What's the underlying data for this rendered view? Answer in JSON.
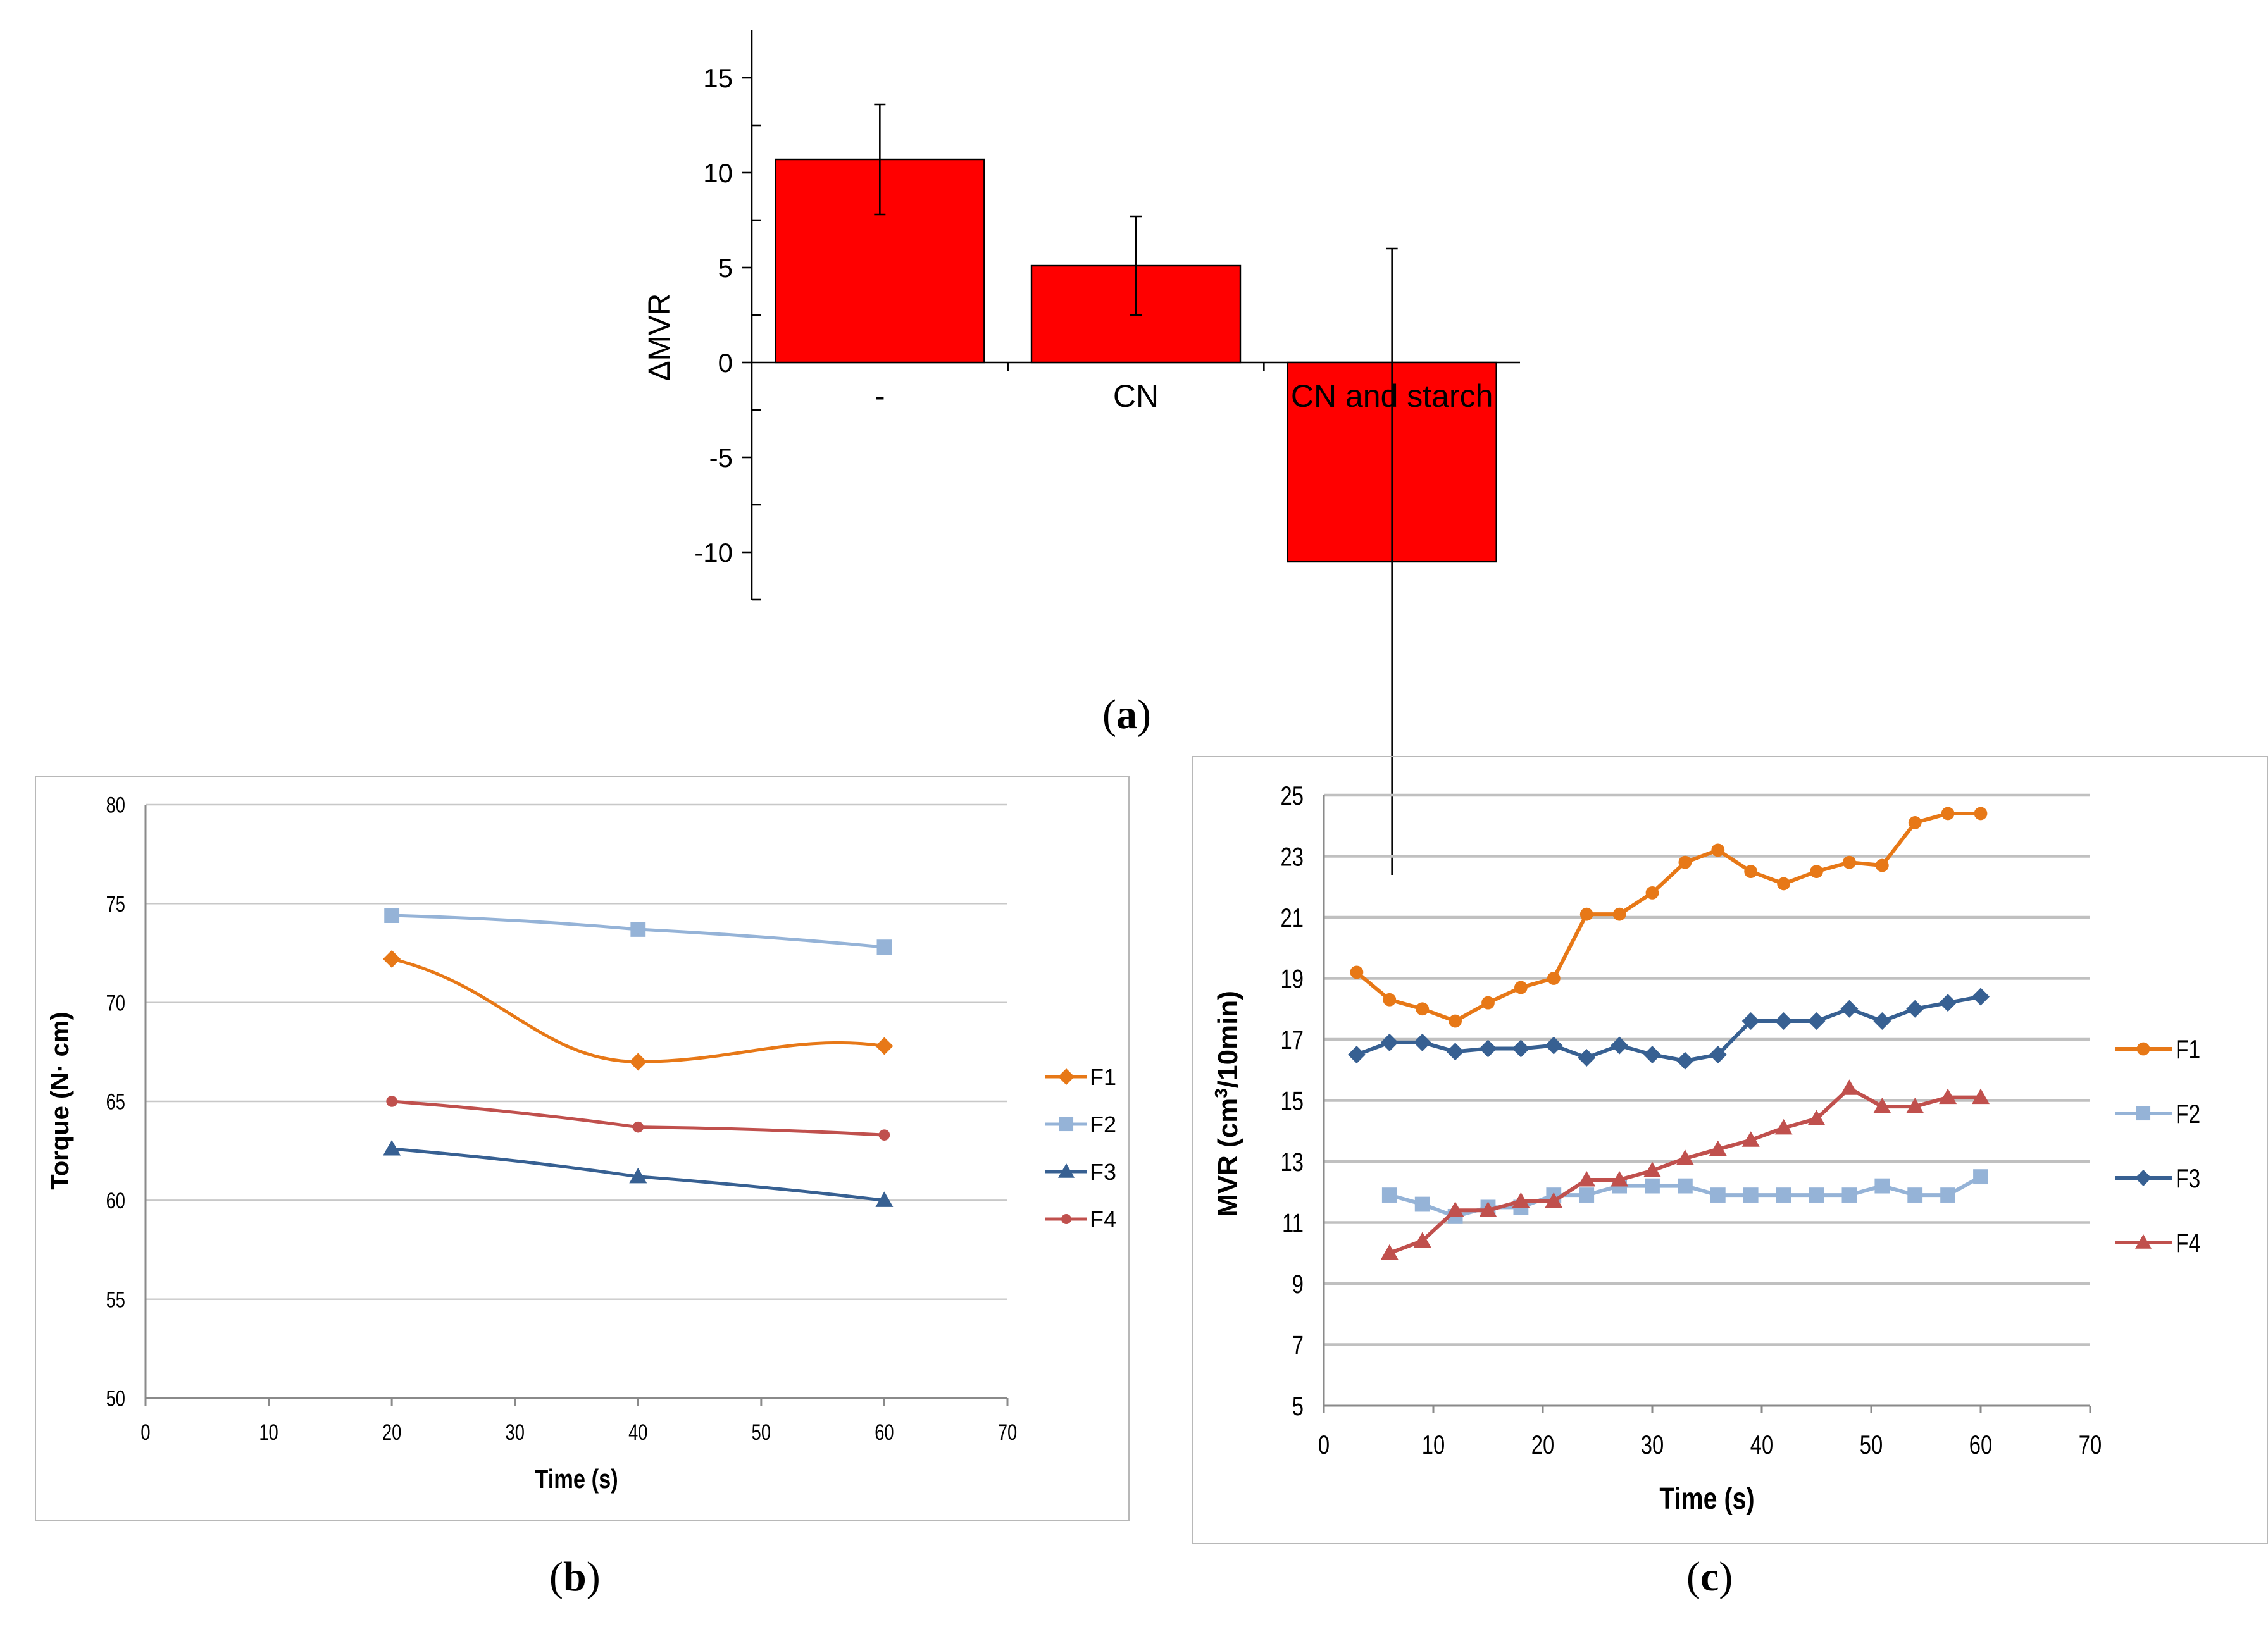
{
  "panel_labels": {
    "a": {
      "open": "(",
      "letter": "a",
      "close": ")"
    },
    "b": {
      "open": "(",
      "letter": "b",
      "close": ")"
    },
    "c": {
      "open": "(",
      "letter": "c",
      "close": ")"
    }
  },
  "colors": {
    "bar": "#ff0000",
    "F1": "#e77817",
    "F2": "#95b3d7",
    "F3": "#376092",
    "F4": "#c0504d"
  },
  "chart_data": [
    {
      "id": "a",
      "type": "bar",
      "title": "",
      "xlabel": "",
      "ylabel": "ΔMVR",
      "categories": [
        "-",
        "CN",
        "CN and starch"
      ],
      "values": [
        10.7,
        5.1,
        -10.5
      ],
      "error": [
        2.9,
        2.6,
        16.5
      ],
      "ylim": [
        -12.5,
        17.5
      ],
      "yticks": [
        "15",
        "10",
        "5",
        "0",
        "-5",
        "-10"
      ],
      "grid": false
    },
    {
      "id": "b",
      "type": "line",
      "title": "",
      "xlabel": "Time (s)",
      "ylabel": "Torque (N· cm)",
      "xlim": [
        0,
        70
      ],
      "ylim": [
        50,
        80
      ],
      "xticks": [
        "0",
        "10",
        "20",
        "30",
        "40",
        "50",
        "60",
        "70"
      ],
      "yticks": [
        "80",
        "75",
        "70",
        "65",
        "60",
        "55",
        "50"
      ],
      "legend_position": "right",
      "grid": true,
      "x": [
        20,
        40,
        60
      ],
      "series": [
        {
          "name": "F1",
          "marker": "diamond",
          "values": [
            72.2,
            67.0,
            67.8
          ]
        },
        {
          "name": "F2",
          "marker": "square",
          "values": [
            74.4,
            73.7,
            72.8
          ]
        },
        {
          "name": "F3",
          "marker": "triangle",
          "values": [
            62.6,
            61.2,
            60.0
          ]
        },
        {
          "name": "F4",
          "marker": "circle",
          "values": [
            65.0,
            63.7,
            63.3
          ]
        }
      ]
    },
    {
      "id": "c",
      "type": "line",
      "title": "",
      "xlabel": "Time (s)",
      "ylabel_main": "MVR (cm",
      "ylabel_sup": "3",
      "ylabel_tail": "/10min)",
      "xlim": [
        0,
        70
      ],
      "ylim": [
        5,
        25
      ],
      "xticks": [
        "0",
        "10",
        "20",
        "30",
        "40",
        "50",
        "60",
        "70"
      ],
      "yticks": [
        "25",
        "23",
        "21",
        "19",
        "17",
        "15",
        "13",
        "11",
        "9",
        "7",
        "5"
      ],
      "legend_position": "right",
      "grid": true,
      "series": [
        {
          "name": "F1",
          "marker": "circle",
          "x": [
            3,
            6,
            9,
            12,
            15,
            18,
            21,
            24,
            27,
            30,
            33,
            36,
            39,
            42,
            45,
            48,
            51,
            54,
            57,
            60
          ],
          "values": [
            19.2,
            18.3,
            18.0,
            17.6,
            18.2,
            18.7,
            19.0,
            21.1,
            21.1,
            21.8,
            22.8,
            23.2,
            22.5,
            22.1,
            22.5,
            22.8,
            22.7,
            24.1,
            24.4,
            24.4
          ]
        },
        {
          "name": "F2",
          "marker": "square",
          "x": [
            6,
            9,
            12,
            15,
            18,
            21,
            24,
            27,
            30,
            33,
            36,
            39,
            42,
            45,
            48,
            51,
            54,
            57,
            60
          ],
          "values": [
            11.9,
            11.6,
            11.2,
            11.5,
            11.5,
            11.9,
            11.9,
            12.2,
            12.2,
            12.2,
            11.9,
            11.9,
            11.9,
            11.9,
            11.9,
            12.2,
            11.9,
            11.9,
            12.5
          ]
        },
        {
          "name": "F3",
          "marker": "diamond",
          "x": [
            3,
            6,
            9,
            12,
            15,
            18,
            21,
            24,
            27,
            30,
            33,
            36,
            39,
            42,
            45,
            48,
            51,
            54,
            57,
            60
          ],
          "values": [
            16.5,
            16.9,
            16.9,
            16.6,
            16.7,
            16.7,
            16.8,
            16.4,
            16.8,
            16.5,
            16.3,
            16.5,
            17.6,
            17.6,
            17.6,
            18.0,
            17.6,
            18.0,
            18.2,
            18.4
          ]
        },
        {
          "name": "F4",
          "marker": "triangle",
          "x": [
            6,
            9,
            12,
            15,
            18,
            21,
            24,
            27,
            30,
            33,
            36,
            39,
            42,
            45,
            48,
            51,
            54,
            57,
            60
          ],
          "values": [
            10.0,
            10.4,
            11.4,
            11.4,
            11.7,
            11.7,
            12.4,
            12.4,
            12.7,
            13.1,
            13.4,
            13.7,
            14.1,
            14.4,
            15.4,
            14.8,
            14.8,
            15.1,
            15.1
          ]
        }
      ]
    }
  ]
}
